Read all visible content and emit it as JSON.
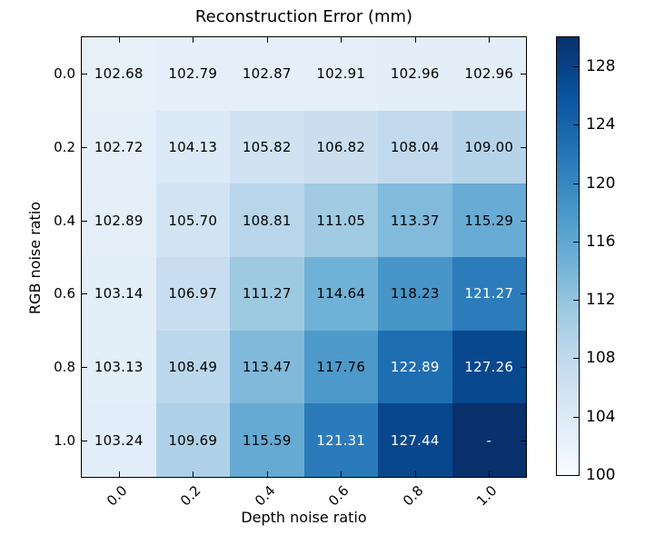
{
  "chart_data": {
    "type": "heatmap",
    "title": "Reconstruction Error (mm)",
    "xlabel": "Depth noise ratio",
    "ylabel": "RGB noise ratio",
    "x_ticklabels": [
      "0.0",
      "0.2",
      "0.4",
      "0.6",
      "0.8",
      "1.0"
    ],
    "y_ticklabels": [
      "0.0",
      "0.2",
      "0.4",
      "0.6",
      "0.8",
      "1.0"
    ],
    "missing_value_label": "-",
    "value_decimals": 2,
    "values": [
      [
        102.68,
        102.79,
        102.87,
        102.91,
        102.96,
        102.96
      ],
      [
        102.72,
        104.13,
        105.82,
        106.82,
        108.04,
        109.0
      ],
      [
        102.89,
        105.7,
        108.81,
        111.05,
        113.37,
        115.29
      ],
      [
        103.14,
        106.97,
        111.27,
        114.64,
        118.23,
        121.27
      ],
      [
        103.13,
        108.49,
        113.47,
        117.76,
        122.89,
        127.26
      ],
      [
        103.24,
        109.69,
        115.59,
        121.31,
        127.44,
        null
      ]
    ],
    "colorbar": {
      "vmin": 100,
      "vmax": 130,
      "ticks": [
        100,
        104,
        108,
        112,
        116,
        120,
        124,
        128
      ],
      "colormap_name": "Blues",
      "colormap_stops": [
        {
          "t": 0.0,
          "color": "#f7fbff"
        },
        {
          "t": 0.125,
          "color": "#deebf7"
        },
        {
          "t": 0.25,
          "color": "#c6dbef"
        },
        {
          "t": 0.375,
          "color": "#9ecae1"
        },
        {
          "t": 0.5,
          "color": "#6baed6"
        },
        {
          "t": 0.625,
          "color": "#4292c6"
        },
        {
          "t": 0.75,
          "color": "#2171b5"
        },
        {
          "t": 0.875,
          "color": "#08519c"
        },
        {
          "t": 1.0,
          "color": "#08306b"
        }
      ]
    },
    "text_colors": {
      "dark": "#000000",
      "light": "#ffffff",
      "light_threshold": 120
    },
    "axis_color": "#000000",
    "background_color": "#ffffff",
    "legend_position": "right-colorbar",
    "grid": false
  }
}
